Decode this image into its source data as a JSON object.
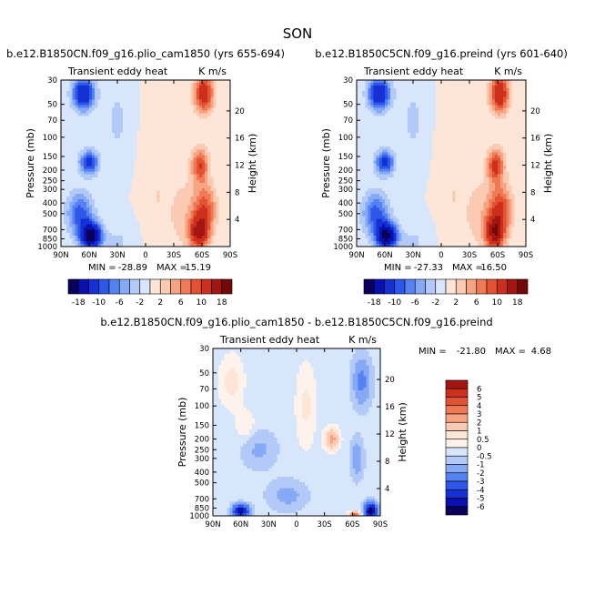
{
  "figure_title": "SON",
  "chart_data": [
    {
      "type": "heatmap",
      "id": "panel-1",
      "title": "b.e12.B1850CN.f09_g16.plio_cam1850 (yrs 655-694)",
      "left_label": "Transient eddy heat",
      "right_label": "K m/s",
      "ylabel": "Pressure (mb)",
      "ylabel_right": "Height (km)",
      "x_ticks": [
        "90N",
        "60N",
        "30N",
        "0",
        "30S",
        "60S",
        "90S"
      ],
      "y_ticks": [
        "30",
        "50",
        "70",
        "100",
        "150",
        "200",
        "250",
        "300",
        "400",
        "500",
        "700",
        "850",
        "1000"
      ],
      "height_ticks": [
        "4",
        "8",
        "12",
        "16",
        "20"
      ],
      "stats": {
        "min_label": "MIN =",
        "min": "-28.89",
        "max_label": "MAX =",
        "max": "15.19"
      },
      "colorbar_orientation": "horizontal",
      "colorbar_labels": [
        "-18",
        "-10",
        "-6",
        "-2",
        "2",
        "6",
        "10",
        "18"
      ],
      "colorbar_colors": [
        "#08005a",
        "#0a0fb0",
        "#1531d3",
        "#2d57e8",
        "#5681f2",
        "#86a9f6",
        "#b3caf9",
        "#d8e6fb",
        "#fde6d8",
        "#fbcab2",
        "#f6a483",
        "#ef7a55",
        "#e45331",
        "#cc2f1c",
        "#a31511",
        "#730808"
      ],
      "blobs": [
        {
          "lat": 66,
          "p": 40,
          "v": -14,
          "sl": 12,
          "sp": 0.35
        },
        {
          "lat": 60,
          "p": 170,
          "v": -12,
          "sl": 10,
          "sp": 0.25
        },
        {
          "lat": 58,
          "p": 800,
          "v": -20,
          "sl": 11,
          "sp": 0.28
        },
        {
          "lat": 70,
          "p": 500,
          "v": -9,
          "sl": 14,
          "sp": 0.45
        },
        {
          "lat": 30,
          "p": 70,
          "v": -3,
          "sl": 10,
          "sp": 0.6
        },
        {
          "lat": 30,
          "p": 900,
          "v": -2.5,
          "sl": 14,
          "sp": 0.3
        },
        {
          "lat": -62,
          "p": 40,
          "v": 13,
          "sl": 10,
          "sp": 0.4
        },
        {
          "lat": -58,
          "p": 180,
          "v": 10,
          "sl": 9,
          "sp": 0.35
        },
        {
          "lat": -57,
          "p": 750,
          "v": 14,
          "sl": 10,
          "sp": 0.35
        },
        {
          "lat": -63,
          "p": 450,
          "v": 9,
          "sl": 12,
          "sp": 0.5
        },
        {
          "lat": -40,
          "p": 500,
          "v": 3,
          "sl": 18,
          "sp": 0.8
        },
        {
          "lat": -12,
          "p": 300,
          "v": 1.8,
          "sl": 10,
          "sp": 1.3
        }
      ]
    },
    {
      "type": "heatmap",
      "id": "panel-2",
      "title": "b.e12.B1850C5CN.f09_g16.preind (yrs 601-640)",
      "left_label": "Transient eddy heat",
      "right_label": "K m/s",
      "ylabel": "Pressure (mb)",
      "ylabel_right": "Height (km)",
      "x_ticks": [
        "90N",
        "60N",
        "30N",
        "0",
        "30S",
        "60S",
        "90S"
      ],
      "y_ticks": [
        "30",
        "50",
        "70",
        "100",
        "150",
        "200",
        "250",
        "300",
        "400",
        "500",
        "700",
        "850",
        "1000"
      ],
      "height_ticks": [
        "4",
        "8",
        "12",
        "16",
        "20"
      ],
      "stats": {
        "min_label": "MIN =",
        "min": "-27.33",
        "max_label": "MAX =",
        "max": "16.50"
      },
      "colorbar_orientation": "horizontal",
      "colorbar_labels": [
        "-18",
        "-10",
        "-6",
        "-2",
        "2",
        "6",
        "10",
        "18"
      ],
      "colorbar_colors": [
        "#08005a",
        "#0a0fb0",
        "#1531d3",
        "#2d57e8",
        "#5681f2",
        "#86a9f6",
        "#b3caf9",
        "#d8e6fb",
        "#fde6d8",
        "#fbcab2",
        "#f6a483",
        "#ef7a55",
        "#e45331",
        "#cc2f1c",
        "#a31511",
        "#730808"
      ],
      "blobs": [
        {
          "lat": 66,
          "p": 40,
          "v": -14,
          "sl": 12,
          "sp": 0.35
        },
        {
          "lat": 60,
          "p": 170,
          "v": -12,
          "sl": 10,
          "sp": 0.25
        },
        {
          "lat": 58,
          "p": 800,
          "v": -19,
          "sl": 11,
          "sp": 0.28
        },
        {
          "lat": 70,
          "p": 500,
          "v": -9,
          "sl": 14,
          "sp": 0.45
        },
        {
          "lat": 30,
          "p": 70,
          "v": -3,
          "sl": 10,
          "sp": 0.6
        },
        {
          "lat": 30,
          "p": 900,
          "v": -2.5,
          "sl": 14,
          "sp": 0.3
        },
        {
          "lat": -62,
          "p": 40,
          "v": 14,
          "sl": 10,
          "sp": 0.4
        },
        {
          "lat": -58,
          "p": 180,
          "v": 11,
          "sl": 9,
          "sp": 0.35
        },
        {
          "lat": -57,
          "p": 750,
          "v": 15,
          "sl": 10,
          "sp": 0.35
        },
        {
          "lat": -63,
          "p": 450,
          "v": 10,
          "sl": 12,
          "sp": 0.5
        },
        {
          "lat": -40,
          "p": 500,
          "v": 3,
          "sl": 18,
          "sp": 0.8
        },
        {
          "lat": -12,
          "p": 300,
          "v": 1.8,
          "sl": 10,
          "sp": 1.3
        }
      ]
    },
    {
      "type": "heatmap",
      "id": "panel-diff",
      "title": "b.e12.B1850CN.f09_g16.plio_cam1850 - b.e12.B1850C5CN.f09_g16.preind",
      "left_label": "Transient eddy heat",
      "right_label": "K m/s",
      "ylabel": "Pressure (mb)",
      "ylabel_right": "Height (km)",
      "x_ticks": [
        "90N",
        "60N",
        "30N",
        "0",
        "30S",
        "60S",
        "90S"
      ],
      "y_ticks": [
        "30",
        "50",
        "70",
        "100",
        "150",
        "200",
        "250",
        "300",
        "400",
        "500",
        "700",
        "850",
        "1000"
      ],
      "height_ticks": [
        "4",
        "8",
        "12",
        "16",
        "20"
      ],
      "stats": {
        "min_label": "MIN =",
        "min": "-21.80",
        "max_label": "MAX =",
        "max": "4.68"
      },
      "colorbar_orientation": "vertical",
      "colorbar_labels": [
        "6",
        "5",
        "4",
        "3",
        "2",
        "1",
        "0.5",
        "0",
        "-0.5",
        "-1",
        "-2",
        "-3",
        "-4",
        "-5",
        "-6"
      ],
      "colorbar_colors": [
        "#a31511",
        "#cc2f1c",
        "#e45331",
        "#ef7a55",
        "#f6a483",
        "#fbcab2",
        "#fde6d8",
        "#fdf3ec",
        "#d8e6fb",
        "#b3caf9",
        "#86a9f6",
        "#5681f2",
        "#2d57e8",
        "#1531d3",
        "#0a0fb0",
        "#08005a"
      ],
      "blobs": [
        {
          "lat": 60,
          "p": 900,
          "v": -5,
          "sl": 8,
          "sp": 0.12
        },
        {
          "lat": -80,
          "p": 900,
          "v": -6,
          "sl": 6,
          "sp": 0.15
        },
        {
          "lat": -62,
          "p": 980,
          "v": 5,
          "sl": 5,
          "sp": 0.06
        },
        {
          "lat": -38,
          "p": 200,
          "v": 2.3,
          "sl": 7,
          "sp": 0.2
        },
        {
          "lat": -70,
          "p": 60,
          "v": -1.2,
          "sl": 10,
          "sp": 0.5
        },
        {
          "lat": -65,
          "p": 300,
          "v": -0.9,
          "sl": 7,
          "sp": 0.4
        },
        {
          "lat": 40,
          "p": 250,
          "v": -0.6,
          "sl": 18,
          "sp": 0.4
        },
        {
          "lat": 70,
          "p": 60,
          "v": 0.7,
          "sl": 12,
          "sp": 0.5
        },
        {
          "lat": -10,
          "p": 100,
          "v": 0.6,
          "sl": 10,
          "sp": 0.8
        },
        {
          "lat": 10,
          "p": 650,
          "v": -0.7,
          "sl": 20,
          "sp": 0.3
        },
        {
          "lat": 55,
          "p": 150,
          "v": 0.5,
          "sl": 10,
          "sp": 0.3
        }
      ]
    }
  ]
}
